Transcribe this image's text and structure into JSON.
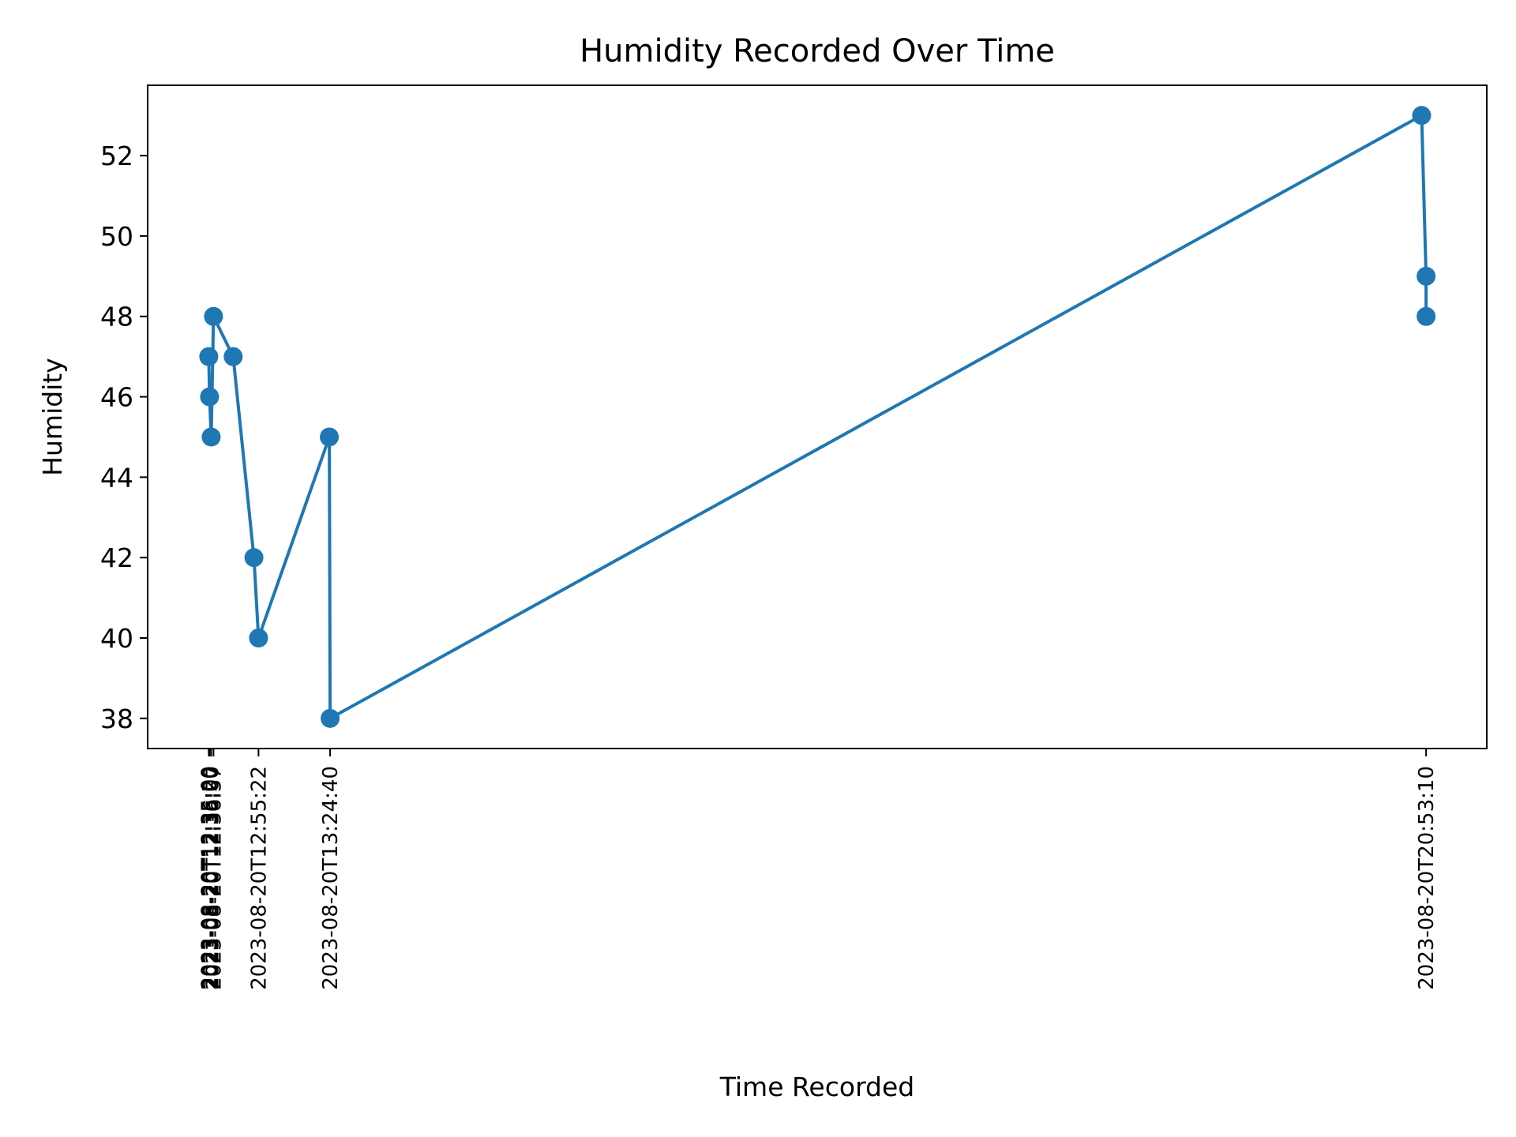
{
  "chart_data": {
    "type": "line",
    "title": "Humidity Recorded Over Time",
    "xlabel": "Time Recorded",
    "ylabel": "Humidity",
    "x": [
      "2023-08-20T12:35:00",
      "2023-08-20T12:35:20",
      "2023-08-20T12:36:00",
      "2023-08-20T12:36:57",
      "2023-08-20T12:45:00",
      "2023-08-20T12:53:30",
      "2023-08-20T12:55:22",
      "2023-08-20T13:24:20",
      "2023-08-20T13:24:40",
      "2023-08-20T20:51:20",
      "2023-08-20T20:53:10",
      "2023-08-20T20:53:10"
    ],
    "series": [
      {
        "values": [
          47,
          46,
          45,
          48,
          47,
          42,
          40,
          45,
          38,
          53,
          49,
          48
        ]
      }
    ],
    "xtick_labels": [
      "2023-08-20T12:35:00",
      "2023-08-20T12:35:20",
      "2023-08-20T12:36:00",
      "2023-08-20T12:36:57",
      "2023-08-20T12:55:22",
      "2023-08-20T13:24:40",
      "2023-08-20T20:53:10"
    ],
    "yticks": [
      38,
      40,
      42,
      44,
      46,
      48,
      50,
      52
    ],
    "ylim": [
      37.25,
      53.75
    ],
    "xlim": [
      "2023-08-20T12:10:00",
      "2023-08-20T21:18:00"
    ],
    "grid": false,
    "colors": {
      "line": "#1f77b4",
      "marker": "#1f77b4"
    }
  }
}
